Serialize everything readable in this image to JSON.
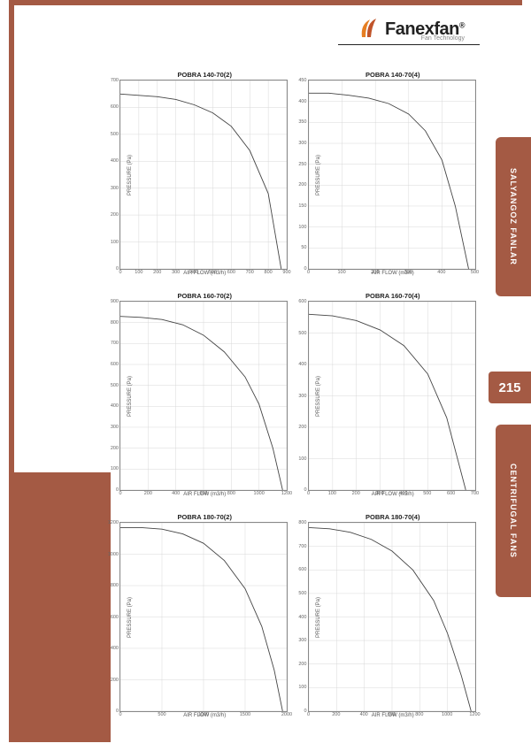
{
  "brand": {
    "name": "Fanexfan",
    "tagline": "Fan Technology",
    "registered": "®"
  },
  "accent_color": "#a45a44",
  "page_number": "215",
  "side_tabs": [
    {
      "label": "SALYANGOZ FANLAR"
    },
    {
      "label": "CENTRIFUGAL FANS"
    }
  ],
  "axis_labels": {
    "x": "AIR FLOW (m3/h)",
    "y": "PRESSURE (Pa)"
  },
  "chart_style": {
    "grid_color": "#d8d8d8",
    "axis_color": "#888888",
    "line_color": "#444444",
    "line_width": 0.9,
    "background": "#ffffff",
    "label_fontsize": 6,
    "title_fontsize": 7.5
  },
  "charts": [
    {
      "title": "POBRA 140-70(2)",
      "xlim": [
        0,
        900
      ],
      "xtick_step": 100,
      "ylim": [
        0,
        700
      ],
      "ytick_step": 100,
      "series": [
        [
          0,
          650
        ],
        [
          100,
          645
        ],
        [
          200,
          640
        ],
        [
          300,
          630
        ],
        [
          400,
          610
        ],
        [
          500,
          580
        ],
        [
          600,
          530
        ],
        [
          700,
          440
        ],
        [
          800,
          280
        ],
        [
          870,
          0
        ]
      ]
    },
    {
      "title": "POBRA 140-70(4)",
      "xlim": [
        0,
        500
      ],
      "xtick_step": 100,
      "ylim": [
        0,
        450
      ],
      "ytick_step": 50,
      "series": [
        [
          0,
          420
        ],
        [
          60,
          420
        ],
        [
          120,
          415
        ],
        [
          180,
          408
        ],
        [
          240,
          395
        ],
        [
          300,
          370
        ],
        [
          350,
          330
        ],
        [
          400,
          260
        ],
        [
          440,
          150
        ],
        [
          480,
          0
        ]
      ]
    },
    {
      "title": "POBRA 160-70(2)",
      "xlim": [
        0,
        1200
      ],
      "xtick_step": 200,
      "ylim": [
        0,
        900
      ],
      "ytick_step": 100,
      "series": [
        [
          0,
          830
        ],
        [
          150,
          825
        ],
        [
          300,
          815
        ],
        [
          450,
          790
        ],
        [
          600,
          740
        ],
        [
          750,
          660
        ],
        [
          900,
          540
        ],
        [
          1000,
          410
        ],
        [
          1100,
          200
        ],
        [
          1170,
          0
        ]
      ]
    },
    {
      "title": "POBRA 160-70(4)",
      "xlim": [
        0,
        700
      ],
      "xtick_step": 100,
      "ylim": [
        0,
        600
      ],
      "ytick_step": 100,
      "series": [
        [
          0,
          560
        ],
        [
          100,
          555
        ],
        [
          200,
          540
        ],
        [
          300,
          510
        ],
        [
          400,
          460
        ],
        [
          500,
          370
        ],
        [
          580,
          230
        ],
        [
          660,
          0
        ]
      ]
    },
    {
      "title": "POBRA 180-70(2)",
      "xlim": [
        0,
        2000
      ],
      "xtick_step": 500,
      "ylim": [
        0,
        1200
      ],
      "ytick_step": 200,
      "series": [
        [
          0,
          1170
        ],
        [
          250,
          1170
        ],
        [
          500,
          1160
        ],
        [
          750,
          1130
        ],
        [
          1000,
          1070
        ],
        [
          1250,
          960
        ],
        [
          1500,
          780
        ],
        [
          1700,
          540
        ],
        [
          1850,
          260
        ],
        [
          1950,
          0
        ]
      ]
    },
    {
      "title": "POBRA 180-70(4)",
      "xlim": [
        0,
        1200
      ],
      "xtick_step": 200,
      "ylim": [
        0,
        800
      ],
      "ytick_step": 100,
      "series": [
        [
          0,
          780
        ],
        [
          150,
          775
        ],
        [
          300,
          760
        ],
        [
          450,
          730
        ],
        [
          600,
          680
        ],
        [
          750,
          600
        ],
        [
          900,
          470
        ],
        [
          1000,
          330
        ],
        [
          1100,
          150
        ],
        [
          1170,
          0
        ]
      ]
    }
  ]
}
